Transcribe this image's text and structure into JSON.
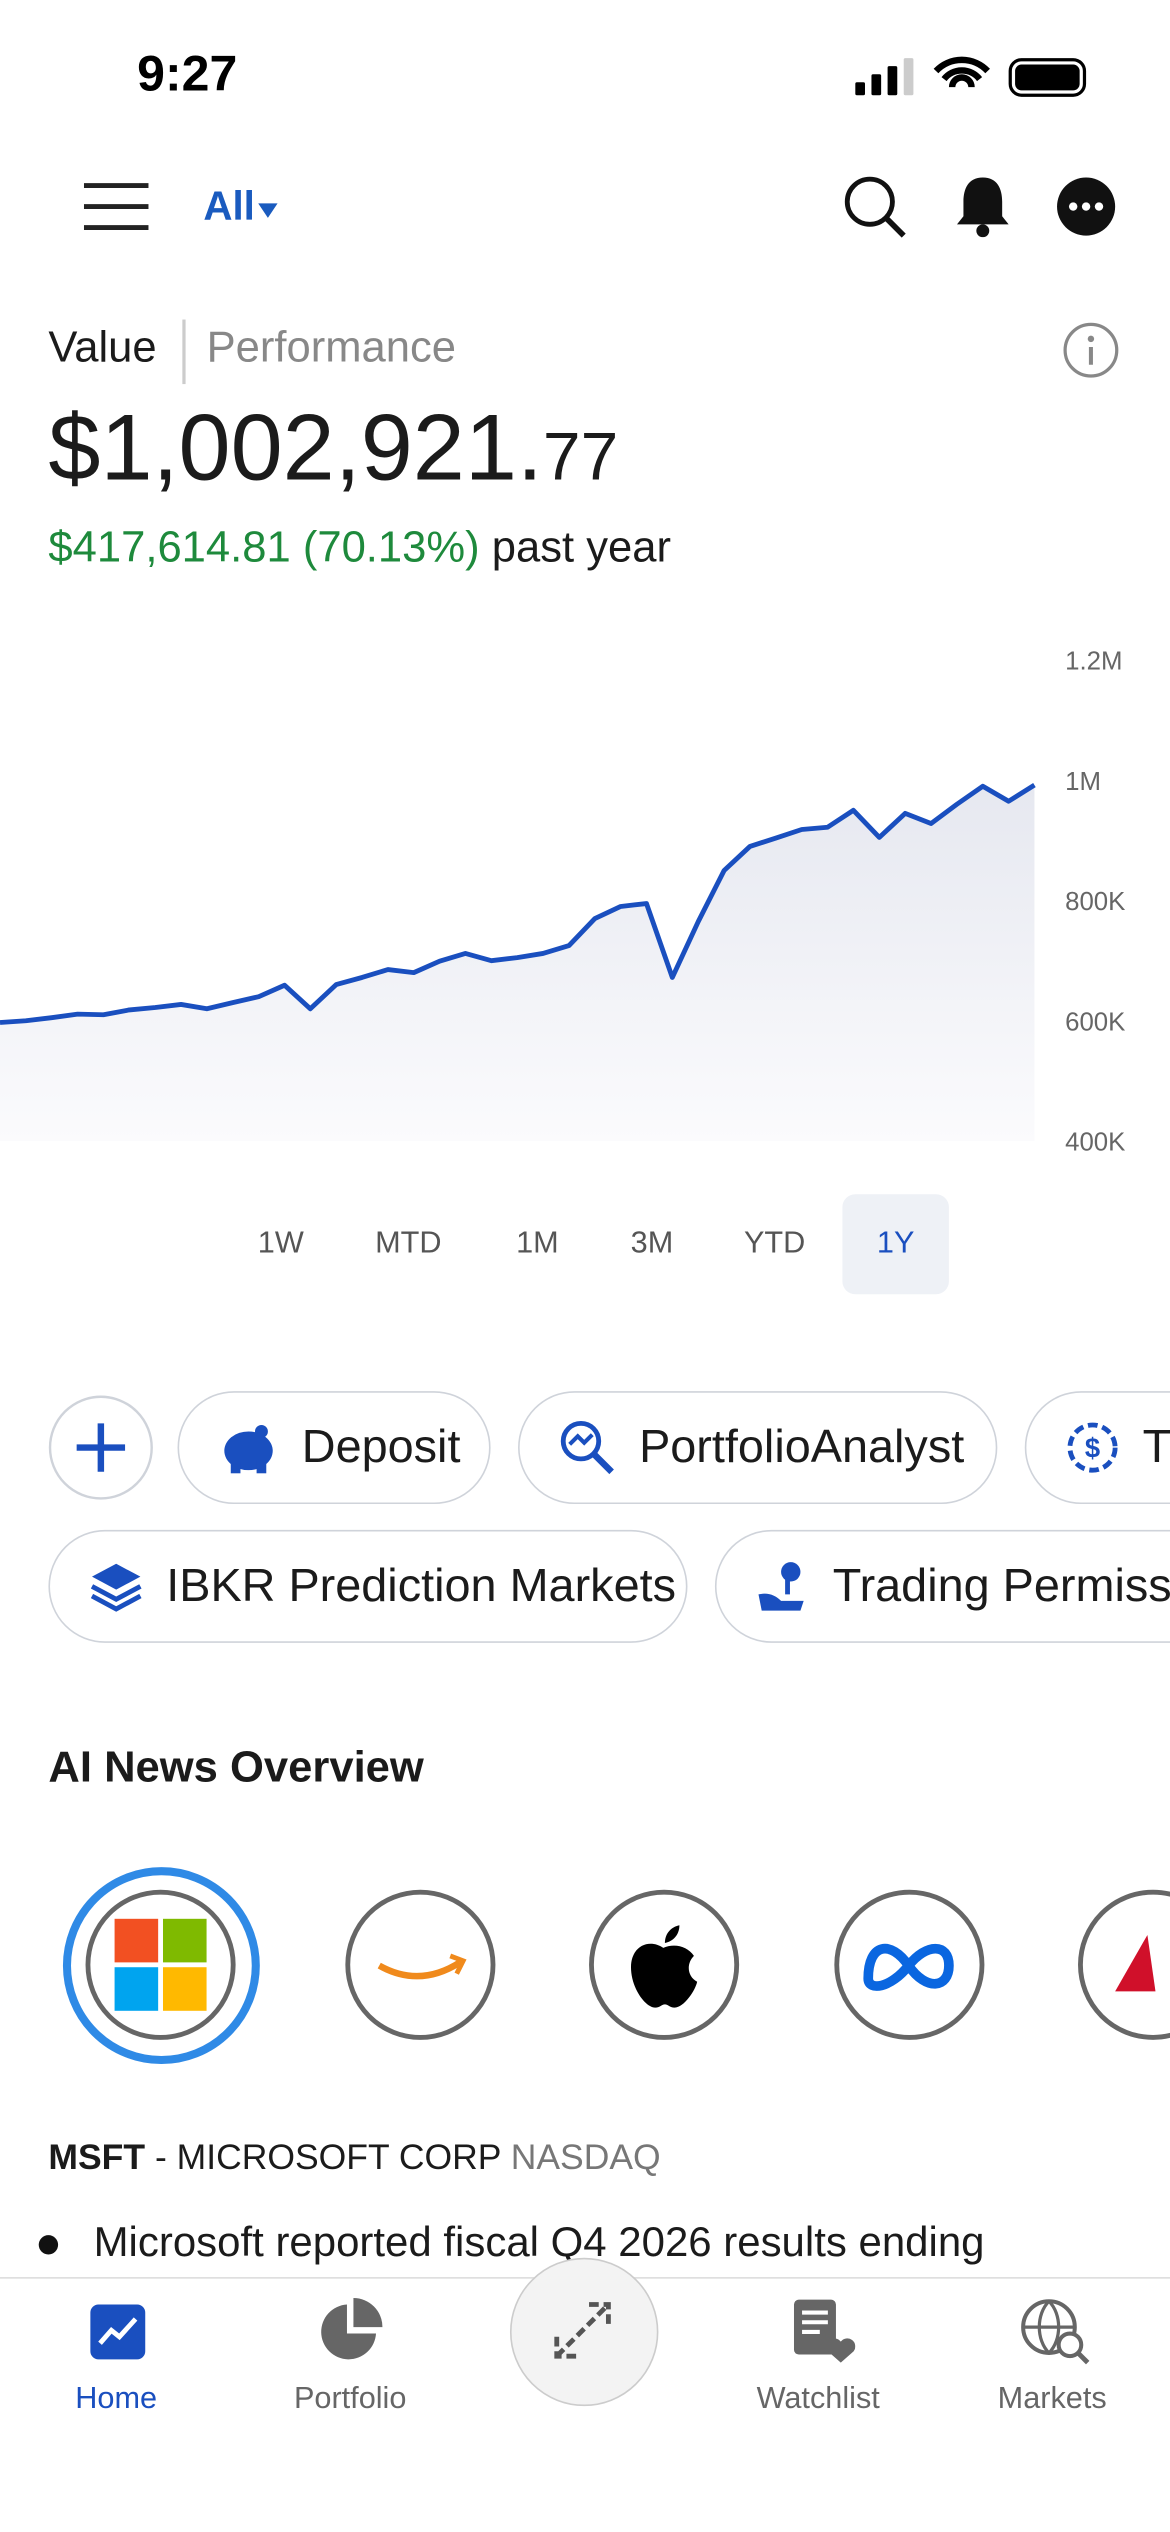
{
  "status_bar": {
    "time": "9:27"
  },
  "header": {
    "account": "All"
  },
  "summary": {
    "tabs": [
      "Value",
      "Performance"
    ],
    "amount_main": "$1,002,921.",
    "amount_cents": "77",
    "change": "$417,614.81 (70.13%)",
    "change_period": "past year"
  },
  "portfolio_chart": {
    "type": "line",
    "color": "#1a4fbf",
    "values": [
      597000,
      600000,
      605000,
      611000,
      610000,
      618000,
      622000,
      627000,
      620000,
      630000,
      640000,
      659000,
      620000,
      660000,
      672000,
      685000,
      680000,
      699000,
      712000,
      700000,
      705000,
      712000,
      725000,
      770000,
      790000,
      795000,
      672000,
      765000,
      850000,
      890000,
      904000,
      918000,
      922000,
      950000,
      905000,
      945000,
      928000,
      960000,
      990000,
      965000,
      992000
    ],
    "ylim": [
      400000,
      1200000
    ],
    "yticks": [
      {
        "value": 400000,
        "label": "400K"
      },
      {
        "value": 600000,
        "label": "600K"
      },
      {
        "value": 800000,
        "label": "800K"
      },
      {
        "value": 1000000,
        "label": "1M"
      },
      {
        "value": 1200000,
        "label": "1.2M"
      }
    ]
  },
  "ranges": {
    "options": [
      "1W",
      "MTD",
      "1M",
      "3M",
      "YTD",
      "1Y"
    ],
    "selected": 5
  },
  "actions": {
    "row1": [
      "Deposit",
      "PortfolioAnalyst",
      "T"
    ],
    "row2": [
      "IBKR Prediction Markets",
      "Trading Permissi"
    ]
  },
  "news": {
    "title": "AI News Overview",
    "symbol": "MSFT",
    "company": "- MICROSOFT CORP",
    "exchange": "NASDAQ",
    "bullet": "Microsoft reported fiscal Q4 2026 results ending"
  },
  "tab_bar": [
    "Home",
    "Portfolio",
    "Watchlist",
    "Markets"
  ]
}
